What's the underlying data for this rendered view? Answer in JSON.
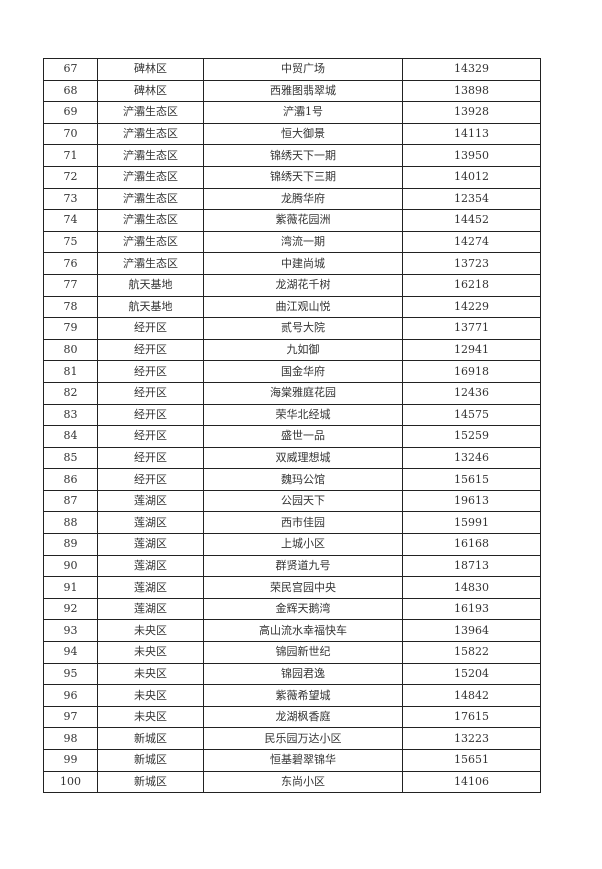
{
  "table": {
    "rows": [
      {
        "no": "67",
        "district": "碑林区",
        "name": "中贸广场",
        "price": "14329"
      },
      {
        "no": "68",
        "district": "碑林区",
        "name": "西雅图翡翠城",
        "price": "13898"
      },
      {
        "no": "69",
        "district": "浐灞生态区",
        "name": "浐灞1号",
        "price": "13928"
      },
      {
        "no": "70",
        "district": "浐灞生态区",
        "name": "恒大御景",
        "price": "14113"
      },
      {
        "no": "71",
        "district": "浐灞生态区",
        "name": "锦绣天下一期",
        "price": "13950"
      },
      {
        "no": "72",
        "district": "浐灞生态区",
        "name": "锦绣天下三期",
        "price": "14012"
      },
      {
        "no": "73",
        "district": "浐灞生态区",
        "name": "龙腾华府",
        "price": "12354"
      },
      {
        "no": "74",
        "district": "浐灞生态区",
        "name": "紫薇花园洲",
        "price": "14452"
      },
      {
        "no": "75",
        "district": "浐灞生态区",
        "name": "湾流一期",
        "price": "14274"
      },
      {
        "no": "76",
        "district": "浐灞生态区",
        "name": "中建尚城",
        "price": "13723"
      },
      {
        "no": "77",
        "district": "航天基地",
        "name": "龙湖花千树",
        "price": "16218"
      },
      {
        "no": "78",
        "district": "航天基地",
        "name": "曲江观山悦",
        "price": "14229"
      },
      {
        "no": "79",
        "district": "经开区",
        "name": "贰号大院",
        "price": "13771"
      },
      {
        "no": "80",
        "district": "经开区",
        "name": "九如御",
        "price": "12941"
      },
      {
        "no": "81",
        "district": "经开区",
        "name": "国金华府",
        "price": "16918"
      },
      {
        "no": "82",
        "district": "经开区",
        "name": "海棠雅庭花园",
        "price": "12436"
      },
      {
        "no": "83",
        "district": "经开区",
        "name": "荣华北经城",
        "price": "14575"
      },
      {
        "no": "84",
        "district": "经开区",
        "name": "盛世一品",
        "price": "15259"
      },
      {
        "no": "85",
        "district": "经开区",
        "name": "双威理想城",
        "price": "13246"
      },
      {
        "no": "86",
        "district": "经开区",
        "name": "魏玛公馆",
        "price": "15615"
      },
      {
        "no": "87",
        "district": "莲湖区",
        "name": "公园天下",
        "price": "19613"
      },
      {
        "no": "88",
        "district": "莲湖区",
        "name": "西市佳园",
        "price": "15991"
      },
      {
        "no": "89",
        "district": "莲湖区",
        "name": "上城小区",
        "price": "16168"
      },
      {
        "no": "90",
        "district": "莲湖区",
        "name": "群贤道九号",
        "price": "18713"
      },
      {
        "no": "91",
        "district": "莲湖区",
        "name": "荣民宫园中央",
        "price": "14830"
      },
      {
        "no": "92",
        "district": "莲湖区",
        "name": "金辉天鹅湾",
        "price": "16193"
      },
      {
        "no": "93",
        "district": "未央区",
        "name": "高山流水幸福快车",
        "price": "13964"
      },
      {
        "no": "94",
        "district": "未央区",
        "name": "锦园新世纪",
        "price": "15822"
      },
      {
        "no": "95",
        "district": "未央区",
        "name": "锦园君逸",
        "price": "15204"
      },
      {
        "no": "96",
        "district": "未央区",
        "name": "紫薇希望城",
        "price": "14842"
      },
      {
        "no": "97",
        "district": "未央区",
        "name": "龙湖枫香庭",
        "price": "17615"
      },
      {
        "no": "98",
        "district": "新城区",
        "name": "民乐园万达小区",
        "price": "13223"
      },
      {
        "no": "99",
        "district": "新城区",
        "name": "恒基碧翠锦华",
        "price": "15651"
      },
      {
        "no": "100",
        "district": "新城区",
        "name": "东尚小区",
        "price": "14106"
      }
    ]
  }
}
